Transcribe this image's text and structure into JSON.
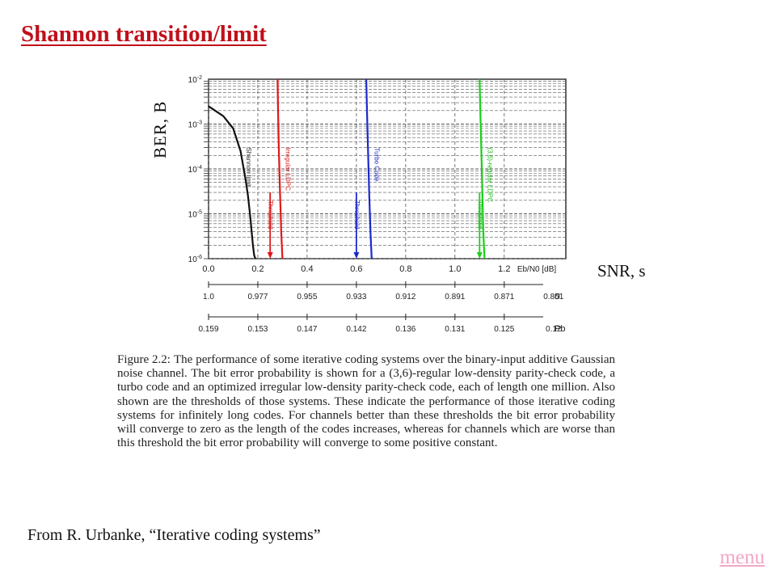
{
  "slide": {
    "title": "Shannon transition/limit",
    "y_axis_label": "BER, B",
    "x_axis_label": "SNR, s",
    "source": "From R. Urbanke,  “Iterative coding systems”",
    "menu_link": "menu"
  },
  "caption": {
    "lead": "Figure 2.2:",
    "body": "The performance of some iterative coding systems over the binary-input additive Gaussian noise channel. The bit error probability is shown for a (3,6)-regular low-density parity-check code, a turbo code and an optimized irregular low-density parity-check code, each of length one million. Also shown are the thresholds of those systems. These indicate the performance of those iterative coding systems for infinitely long codes. For channels better than these thresholds the bit error probability will converge to zero as the length of the codes increases, whereas for channels which are worse than this threshold the bit error probability will converge to some positive constant."
  },
  "colors": {
    "title": "#c0101a",
    "shannon": "#111111",
    "irregular": "#e01818",
    "turbo": "#1a2acc",
    "regular": "#18d018",
    "menu": "#f2a6c8"
  },
  "chart_data": {
    "type": "line",
    "x_scale": "linear",
    "y_scale": "log",
    "xlim": [
      0.0,
      1.45
    ],
    "ylim": [
      1e-06,
      0.01
    ],
    "x_ticks": [
      "0.0",
      "0.2",
      "0.4",
      "0.6",
      "0.8",
      "1.0",
      "1.2"
    ],
    "x_unit_label": "Eb/N0 [dB]",
    "y_ticks": [
      "10-6",
      "10-5",
      "10-4",
      "10-3",
      "10-2"
    ],
    "grid": true,
    "sigma_label": "σ",
    "sigma_ticks": [
      "1.0",
      "0.977",
      "0.955",
      "0.933",
      "0.912",
      "0.891",
      "0.871",
      "0.851"
    ],
    "pb_label": "Pb",
    "pb_ticks": [
      "0.159",
      "0.153",
      "0.147",
      "0.142",
      "0.136",
      "0.131",
      "0.125",
      "0.12"
    ],
    "series": [
      {
        "name": "Shannon limit",
        "color": "#111111",
        "x": [
          0.0,
          0.06,
          0.1,
          0.13,
          0.15,
          0.16,
          0.17,
          0.175,
          0.18,
          0.185,
          0.19
        ],
        "y": [
          0.0025,
          0.0015,
          0.0008,
          0.00025,
          6e-05,
          2.5e-05,
          8e-06,
          4e-06,
          2e-06,
          1.2e-06,
          1e-06
        ]
      },
      {
        "name": "Irregular LDPC",
        "color": "#e01818",
        "x": [
          0.28,
          0.282,
          0.285,
          0.29,
          0.295,
          0.3
        ],
        "y": [
          0.01,
          0.002,
          0.0003,
          3e-05,
          4e-06,
          1e-06
        ]
      },
      {
        "name": "Turbo Code",
        "color": "#1a2acc",
        "x": [
          0.64,
          0.643,
          0.647,
          0.652,
          0.657,
          0.662
        ],
        "y": [
          0.01,
          0.002,
          0.0003,
          3e-05,
          4e-06,
          1e-06
        ]
      },
      {
        "name": "(3,6)-regular LDPC",
        "color": "#18d018",
        "x": [
          1.1,
          1.103,
          1.107,
          1.111,
          1.115,
          1.12
        ],
        "y": [
          0.01,
          0.002,
          0.0003,
          3e-05,
          4e-06,
          1e-06
        ]
      }
    ],
    "annotations": [
      {
        "text": "Shannon limit",
        "x": 0.16
      },
      {
        "text": "Irregular LDPC",
        "x": 0.32
      },
      {
        "text": "Threshold",
        "x": 0.25
      },
      {
        "text": "Turbo Code",
        "x": 0.68
      },
      {
        "text": "Threshold",
        "x": 0.6
      },
      {
        "text": "(3,6)-regular LDPC",
        "x": 1.14
      },
      {
        "text": "Threshold",
        "x": 1.1
      }
    ],
    "thresholds": [
      {
        "x": 0.25,
        "color": "#e01818"
      },
      {
        "x": 0.6,
        "color": "#1a2acc"
      },
      {
        "x": 1.1,
        "color": "#18d018"
      }
    ]
  }
}
